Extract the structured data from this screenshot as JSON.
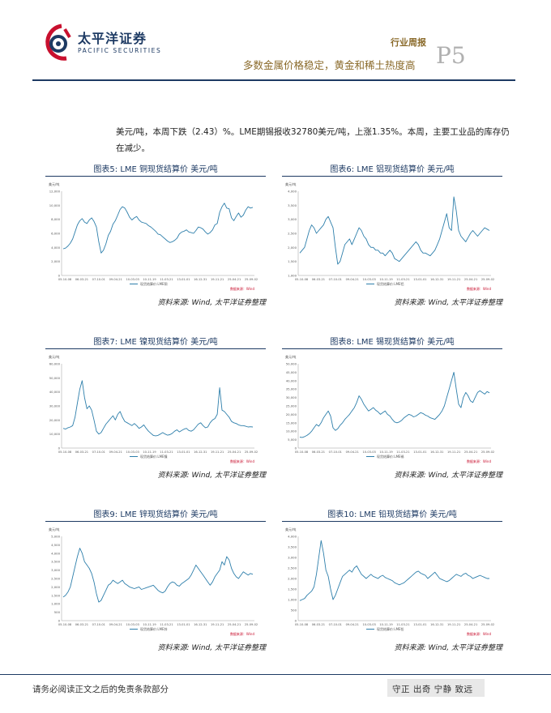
{
  "header": {
    "company_cn": "太平洋证券",
    "company_en": "PACIFIC SECURITIES",
    "report_type": "行业周报",
    "report_title": "多数金属价格稳定，黄金和稀土热度高",
    "page_number": "P5"
  },
  "body": {
    "paragraph": "美元/吨，本周下跌（2.43）%。LME期锡报收32780美元/吨，上涨1.35%。本周，主要工业品的库存仍在减少。"
  },
  "figures": [
    {
      "title": "图表5: LME 铜现货结算价 美元/吨",
      "source": "资料来源: Wind, 太平洋证券整理",
      "chart_data": {
        "type": "line",
        "color": "#2e7fab",
        "unit": "美元/吨",
        "legend": "现货结算价:LME铜",
        "credit": "数据来源：Wind",
        "yticks": [
          "12,000",
          "10,000",
          "8,000",
          "6,000",
          "4,000",
          "2,000",
          "0"
        ],
        "xticks": [
          "05-10-08",
          "06-03-21",
          "07-10-01",
          "09-04-21",
          "10-03-03",
          "10-11-19",
          "11-03-21",
          "13-01-01",
          "16-12-31",
          "19-11-21",
          "25-04-21",
          "25-09-02"
        ],
        "ylim": [
          0,
          12000
        ],
        "values": [
          3800,
          3900,
          4200,
          4600,
          5200,
          6200,
          7200,
          7800,
          8100,
          7600,
          7400,
          7900,
          8200,
          7700,
          6900,
          4800,
          3200,
          3600,
          4500,
          5700,
          6300,
          7300,
          7800,
          8600,
          9400,
          9800,
          9600,
          9000,
          8300,
          7900,
          8200,
          8400,
          7900,
          7600,
          7500,
          7400,
          7100,
          6900,
          6600,
          6300,
          5900,
          5800,
          5500,
          5200,
          4900,
          4700,
          4800,
          5000,
          5300,
          5900,
          6200,
          6300,
          6500,
          6200,
          6100,
          6000,
          6400,
          6900,
          6800,
          6600,
          6200,
          5900,
          6100,
          6500,
          7200,
          7400,
          9000,
          9800,
          10300,
          9600,
          9500,
          8200,
          7800,
          8400,
          8900,
          8300,
          8600,
          9300,
          9800,
          9600,
          9700
        ]
      }
    },
    {
      "title": "图表6: LME 铝现货结算价 美元/吨",
      "source": "资料来源: Wind, 太平洋证券整理",
      "chart_data": {
        "type": "line",
        "color": "#2e7fab",
        "unit": "美元/吨",
        "legend": "现货结算价:LME铝",
        "credit": "数据来源：Wind",
        "yticks": [
          "4,000",
          "3,500",
          "3,000",
          "2,500",
          "2,000",
          "1,500",
          "1,000"
        ],
        "xticks": [
          "05-10-08",
          "06-03-21",
          "07-10-01",
          "09-04-21",
          "10-03-03",
          "10-11-19",
          "11-03-21",
          "13-01-01",
          "16-12-31",
          "19-11-21",
          "25-04-21",
          "25-09-02"
        ],
        "ylim": [
          1000,
          4000
        ],
        "values": [
          1800,
          1900,
          2000,
          2300,
          2600,
          2800,
          2700,
          2500,
          2600,
          2700,
          2800,
          3000,
          3100,
          2900,
          2700,
          2000,
          1400,
          1500,
          1800,
          2100,
          2200,
          2300,
          2100,
          2300,
          2500,
          2700,
          2600,
          2400,
          2300,
          2100,
          2000,
          2000,
          1900,
          1900,
          1800,
          1800,
          1700,
          1800,
          1900,
          1800,
          1600,
          1550,
          1500,
          1600,
          1700,
          1800,
          1900,
          2000,
          2100,
          2200,
          2100,
          1900,
          1800,
          1800,
          1750,
          1700,
          1800,
          1900,
          2100,
          2300,
          2600,
          2900,
          3200,
          2700,
          2600,
          3800,
          3300,
          2600,
          2400,
          2300,
          2200,
          2350,
          2500,
          2600,
          2500,
          2400,
          2500,
          2600,
          2700,
          2650,
          2600
        ]
      }
    },
    {
      "title": "图表7: LME 镍现货结算价 美元/吨",
      "source": "资料来源: Wind, 太平洋证券整理",
      "chart_data": {
        "type": "line",
        "color": "#2e7fab",
        "unit": "美元/吨",
        "legend": "现货结算价:LME镍",
        "credit": "数据来源：Wind",
        "yticks": [
          "60,000",
          "50,000",
          "40,000",
          "30,000",
          "20,000",
          "10,000",
          "0"
        ],
        "xticks": [
          "05-10-08",
          "06-03-21",
          "07-10-01",
          "09-04-21",
          "10-03-03",
          "10-11-19",
          "11-03-21",
          "13-01-01",
          "16-12-31",
          "19-11-21",
          "25-04-21",
          "25-09-02"
        ],
        "ylim": [
          0,
          60000
        ],
        "values": [
          14000,
          13500,
          14500,
          15000,
          16000,
          22000,
          32000,
          42000,
          48000,
          36000,
          28000,
          30000,
          27000,
          20000,
          12000,
          10000,
          11000,
          14000,
          17000,
          19000,
          21000,
          23000,
          20000,
          24000,
          26000,
          22000,
          19000,
          18000,
          17000,
          16000,
          17500,
          16000,
          14000,
          15000,
          16500,
          14000,
          12000,
          10500,
          9000,
          8700,
          9000,
          10000,
          11000,
          10000,
          9200,
          9500,
          10500,
          12000,
          13000,
          11500,
          12500,
          13500,
          14000,
          12500,
          12000,
          13000,
          15000,
          17000,
          18000,
          16000,
          14500,
          15000,
          18000,
          20000,
          21000,
          24000,
          43000,
          27000,
          26000,
          24000,
          22000,
          19000,
          18000,
          17500,
          16500,
          16000,
          16000,
          15500,
          15000,
          15200,
          15000
        ]
      }
    },
    {
      "title": "图表8: LME 锡现货结算价 美元/吨",
      "source": "资料来源: Wind, 太平洋证券整理",
      "chart_data": {
        "type": "line",
        "color": "#2e7fab",
        "unit": "美元/吨",
        "legend": "现货结算价:LME锡",
        "credit": "数据来源：Wind",
        "yticks": [
          "50,000",
          "45,000",
          "40,000",
          "35,000",
          "30,000",
          "25,000",
          "20,000",
          "15,000",
          "10,000",
          "5,000",
          "0"
        ],
        "xticks": [
          "05-10-08",
          "06-03-21",
          "07-10-01",
          "09-04-21",
          "10-03-03",
          "10-11-19",
          "11-03-21",
          "13-01-01",
          "16-12-31",
          "19-11-21",
          "25-04-21",
          "25-09-02"
        ],
        "ylim": [
          0,
          50000
        ],
        "values": [
          6500,
          6300,
          6800,
          7500,
          8500,
          10000,
          12000,
          14000,
          13000,
          15000,
          18000,
          20000,
          22000,
          19000,
          12000,
          10500,
          11500,
          13500,
          15000,
          17000,
          18500,
          20000,
          22000,
          24000,
          27000,
          31000,
          29000,
          26000,
          24000,
          22000,
          23000,
          24000,
          22500,
          21500,
          20000,
          21000,
          22000,
          20000,
          19000,
          17000,
          15500,
          15000,
          15500,
          16500,
          18000,
          19000,
          20000,
          19500,
          18500,
          19000,
          20000,
          21000,
          20500,
          19500,
          19000,
          18000,
          17500,
          17000,
          18500,
          20000,
          22000,
          25000,
          30000,
          35000,
          40000,
          45000,
          35000,
          26000,
          24000,
          30000,
          33000,
          31000,
          28000,
          27000,
          30000,
          33000,
          34000,
          33000,
          32000,
          33500,
          32780
        ]
      }
    },
    {
      "title": "图表9: LME 锌现货结算价 美元/吨",
      "source": "资料来源: Wind, 太平洋证券整理",
      "chart_data": {
        "type": "line",
        "color": "#2e7fab",
        "unit": "美元/吨",
        "legend": "现货结算价:LME锌",
        "credit": "数据来源：Wind",
        "yticks": [
          "5,000",
          "4,500",
          "4,000",
          "3,500",
          "3,000",
          "2,500",
          "2,000",
          "1,500",
          "1,000",
          "500",
          "0"
        ],
        "xticks": [
          "05-10-08",
          "06-03-21",
          "07-10-01",
          "09-04-21",
          "10-03-03",
          "10-11-19",
          "11-03-21",
          "13-01-01",
          "16-12-31",
          "19-11-21",
          "25-04-21",
          "25-09-02"
        ],
        "ylim": [
          0,
          5000
        ],
        "values": [
          1400,
          1500,
          1700,
          2000,
          2600,
          3200,
          3800,
          4300,
          4000,
          3500,
          3300,
          3100,
          2800,
          2300,
          1600,
          1100,
          1200,
          1500,
          1800,
          2100,
          2200,
          2400,
          2300,
          2200,
          2300,
          2400,
          2200,
          2100,
          2000,
          1950,
          1900,
          1950,
          2000,
          1850,
          1900,
          1950,
          2000,
          2050,
          2100,
          1950,
          1800,
          1700,
          1650,
          1750,
          2000,
          2200,
          2300,
          2250,
          2100,
          2050,
          2200,
          2300,
          2400,
          2500,
          2700,
          3000,
          3300,
          3100,
          2900,
          2700,
          2500,
          2300,
          2100,
          2300,
          2600,
          2800,
          3000,
          3500,
          3300,
          3800,
          3600,
          3100,
          2800,
          2600,
          2500,
          2700,
          2900,
          2800,
          2700,
          2800,
          2750
        ]
      }
    },
    {
      "title": "图表10: LME 铅现货结算价 美元/吨",
      "source": "资料来源: Wind, 太平洋证券整理",
      "chart_data": {
        "type": "line",
        "color": "#2e7fab",
        "unit": "美元/吨",
        "legend": "现货结算价:LME铅",
        "credit": "数据来源：Wind",
        "yticks": [
          "4,000",
          "3,500",
          "3,000",
          "2,500",
          "2,000",
          "1,500",
          "1,000",
          "500",
          "0"
        ],
        "xticks": [
          "05-10-08",
          "06-03-21",
          "07-10-01",
          "09-04-21",
          "10-03-03",
          "10-11-19",
          "11-03-21",
          "13-01-01",
          "16-12-31",
          "19-11-21",
          "25-04-21",
          "25-09-02"
        ],
        "ylim": [
          0,
          4000
        ],
        "values": [
          950,
          1000,
          1050,
          1200,
          1300,
          1400,
          1600,
          2200,
          3000,
          3800,
          3200,
          2400,
          2100,
          1500,
          1000,
          1200,
          1500,
          1800,
          2100,
          2200,
          2300,
          2400,
          2300,
          2500,
          2600,
          2400,
          2200,
          2100,
          2000,
          2100,
          2200,
          2100,
          2050,
          2000,
          2100,
          2150,
          2050,
          2000,
          1950,
          1900,
          1800,
          1750,
          1700,
          1750,
          1800,
          1900,
          2000,
          2100,
          2200,
          2300,
          2350,
          2250,
          2200,
          2150,
          2000,
          2100,
          2200,
          2300,
          2150,
          2000,
          1950,
          1900,
          1850,
          1900,
          2000,
          2100,
          2200,
          2150,
          2100,
          2200,
          2250,
          2150,
          2100,
          2000,
          2050,
          2100,
          2150,
          2100,
          2050,
          2000,
          2000
        ]
      }
    }
  ],
  "footer": {
    "disclaimer": "请务必阅读正文之后的免责条款部分",
    "motto": "守正 出奇 宁静 致远"
  }
}
